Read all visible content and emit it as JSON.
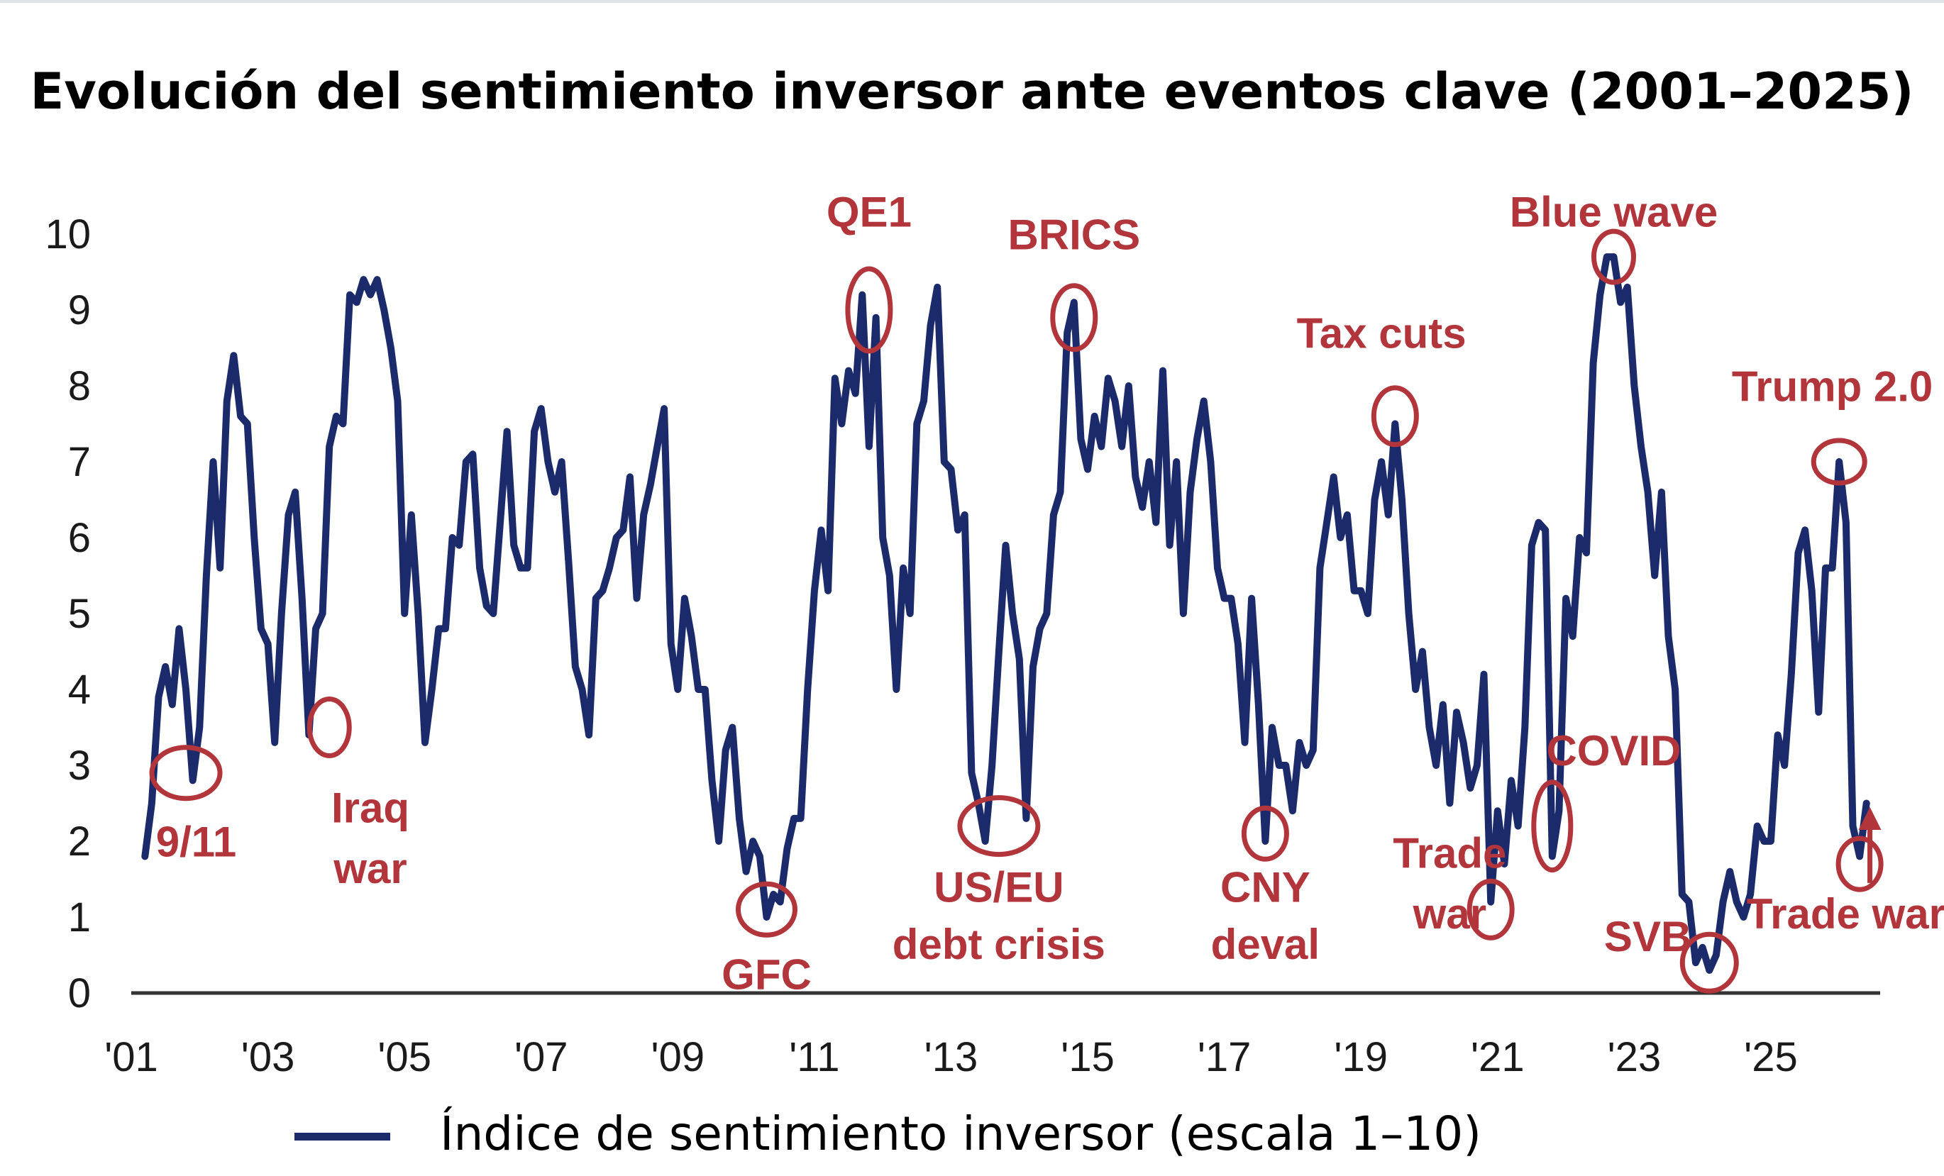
{
  "chart_data": {
    "type": "line",
    "title": "Evolución del sentimiento inversor ante eventos clave (2001–2025)",
    "xlabel": "",
    "ylabel": "",
    "xlim": [
      2001.0,
      2026.6
    ],
    "ylim": [
      0,
      10
    ],
    "y_ticks": [
      "0",
      "1",
      "2",
      "3",
      "4",
      "5",
      "6",
      "7",
      "8",
      "9",
      "10"
    ],
    "x_ticks": [
      {
        "label": "'01",
        "x": 2001
      },
      {
        "label": "'03",
        "x": 2003
      },
      {
        "label": "'05",
        "x": 2005
      },
      {
        "label": "'07",
        "x": 2007
      },
      {
        "label": "'09",
        "x": 2009
      },
      {
        "label": "'11",
        "x": 2011
      },
      {
        "label": "'13",
        "x": 2013
      },
      {
        "label": "'15",
        "x": 2015
      },
      {
        "label": "'17",
        "x": 2017
      },
      {
        "label": "'19",
        "x": 2019
      },
      {
        "label": "'21",
        "x": 2021
      },
      {
        "label": "'23",
        "x": 2023
      },
      {
        "label": "'25",
        "x": 2025
      }
    ],
    "grid": false,
    "legend_position": "bottom",
    "colors": {
      "line": "#1b2a6b",
      "annotation": "#b2353b",
      "axis": "#333333"
    },
    "series": [
      {
        "name": "Índice de sentimiento inversor (escala 1–10)",
        "points": [
          [
            2001.2,
            1.8
          ],
          [
            2001.3,
            2.5
          ],
          [
            2001.4,
            3.9
          ],
          [
            2001.5,
            4.3
          ],
          [
            2001.6,
            3.8
          ],
          [
            2001.7,
            4.8
          ],
          [
            2001.8,
            4.0
          ],
          [
            2001.9,
            2.8
          ],
          [
            2002.0,
            3.5
          ],
          [
            2002.1,
            5.5
          ],
          [
            2002.2,
            7.0
          ],
          [
            2002.3,
            5.6
          ],
          [
            2002.4,
            7.8
          ],
          [
            2002.5,
            8.4
          ],
          [
            2002.6,
            7.6
          ],
          [
            2002.7,
            7.5
          ],
          [
            2002.8,
            6.0
          ],
          [
            2002.9,
            4.8
          ],
          [
            2003.0,
            4.6
          ],
          [
            2003.1,
            3.3
          ],
          [
            2003.2,
            5.0
          ],
          [
            2003.3,
            6.3
          ],
          [
            2003.4,
            6.6
          ],
          [
            2003.5,
            5.2
          ],
          [
            2003.6,
            3.4
          ],
          [
            2003.7,
            4.8
          ],
          [
            2003.8,
            5.0
          ],
          [
            2003.9,
            7.2
          ],
          [
            2004.0,
            7.6
          ],
          [
            2004.1,
            7.5
          ],
          [
            2004.2,
            9.2
          ],
          [
            2004.3,
            9.1
          ],
          [
            2004.4,
            9.4
          ],
          [
            2004.5,
            9.2
          ],
          [
            2004.6,
            9.4
          ],
          [
            2004.7,
            9.0
          ],
          [
            2004.8,
            8.5
          ],
          [
            2004.9,
            7.8
          ],
          [
            2005.0,
            5.0
          ],
          [
            2005.1,
            6.3
          ],
          [
            2005.2,
            5.0
          ],
          [
            2005.3,
            3.3
          ],
          [
            2005.4,
            4.0
          ],
          [
            2005.5,
            4.8
          ],
          [
            2005.6,
            4.8
          ],
          [
            2005.7,
            6.0
          ],
          [
            2005.8,
            5.9
          ],
          [
            2005.9,
            7.0
          ],
          [
            2006.0,
            7.1
          ],
          [
            2006.1,
            5.6
          ],
          [
            2006.2,
            5.1
          ],
          [
            2006.3,
            5.0
          ],
          [
            2006.4,
            6.2
          ],
          [
            2006.5,
            7.4
          ],
          [
            2006.6,
            5.9
          ],
          [
            2006.7,
            5.6
          ],
          [
            2006.8,
            5.6
          ],
          [
            2006.9,
            7.4
          ],
          [
            2007.0,
            7.7
          ],
          [
            2007.1,
            7.0
          ],
          [
            2007.2,
            6.6
          ],
          [
            2007.3,
            7.0
          ],
          [
            2007.4,
            5.7
          ],
          [
            2007.5,
            4.3
          ],
          [
            2007.6,
            4.0
          ],
          [
            2007.7,
            3.4
          ],
          [
            2007.8,
            5.2
          ],
          [
            2007.9,
            5.3
          ],
          [
            2008.0,
            5.6
          ],
          [
            2008.1,
            6.0
          ],
          [
            2008.2,
            6.1
          ],
          [
            2008.3,
            6.8
          ],
          [
            2008.4,
            5.2
          ],
          [
            2008.5,
            6.3
          ],
          [
            2008.6,
            6.7
          ],
          [
            2008.7,
            7.2
          ],
          [
            2008.8,
            7.7
          ],
          [
            2008.9,
            4.6
          ],
          [
            2009.0,
            4.0
          ],
          [
            2009.1,
            5.2
          ],
          [
            2009.2,
            4.7
          ],
          [
            2009.3,
            4.0
          ],
          [
            2009.4,
            4.0
          ],
          [
            2009.5,
            2.8
          ],
          [
            2009.6,
            2.0
          ],
          [
            2009.7,
            3.2
          ],
          [
            2009.8,
            3.5
          ],
          [
            2009.9,
            2.3
          ],
          [
            2010.0,
            1.6
          ],
          [
            2010.1,
            2.0
          ],
          [
            2010.2,
            1.8
          ],
          [
            2010.3,
            1.0
          ],
          [
            2010.4,
            1.3
          ],
          [
            2010.5,
            1.2
          ],
          [
            2010.6,
            1.9
          ],
          [
            2010.7,
            2.3
          ],
          [
            2010.8,
            2.3
          ],
          [
            2010.9,
            4.0
          ],
          [
            2011.0,
            5.3
          ],
          [
            2011.1,
            6.1
          ],
          [
            2011.2,
            5.3
          ],
          [
            2011.3,
            8.1
          ],
          [
            2011.4,
            7.5
          ],
          [
            2011.5,
            8.2
          ],
          [
            2011.6,
            7.9
          ],
          [
            2011.7,
            9.2
          ],
          [
            2011.8,
            7.2
          ],
          [
            2011.9,
            8.9
          ],
          [
            2012.0,
            6.0
          ],
          [
            2012.1,
            5.5
          ],
          [
            2012.2,
            4.0
          ],
          [
            2012.3,
            5.6
          ],
          [
            2012.4,
            5.0
          ],
          [
            2012.5,
            7.5
          ],
          [
            2012.6,
            7.8
          ],
          [
            2012.7,
            8.8
          ],
          [
            2012.8,
            9.3
          ],
          [
            2012.9,
            7.0
          ],
          [
            2013.0,
            6.9
          ],
          [
            2013.1,
            6.1
          ],
          [
            2013.2,
            6.3
          ],
          [
            2013.3,
            2.9
          ],
          [
            2013.4,
            2.5
          ],
          [
            2013.5,
            2.0
          ],
          [
            2013.6,
            3.0
          ],
          [
            2013.7,
            4.5
          ],
          [
            2013.8,
            5.9
          ],
          [
            2013.9,
            5.0
          ],
          [
            2014.0,
            4.4
          ],
          [
            2014.1,
            2.3
          ],
          [
            2014.2,
            4.3
          ],
          [
            2014.3,
            4.8
          ],
          [
            2014.4,
            5.0
          ],
          [
            2014.5,
            6.3
          ],
          [
            2014.6,
            6.6
          ],
          [
            2014.7,
            8.7
          ],
          [
            2014.8,
            9.1
          ],
          [
            2014.9,
            7.3
          ],
          [
            2015.0,
            6.9
          ],
          [
            2015.1,
            7.6
          ],
          [
            2015.2,
            7.2
          ],
          [
            2015.3,
            8.1
          ],
          [
            2015.4,
            7.8
          ],
          [
            2015.5,
            7.2
          ],
          [
            2015.6,
            8.0
          ],
          [
            2015.7,
            6.8
          ],
          [
            2015.8,
            6.4
          ],
          [
            2015.9,
            7.0
          ],
          [
            2016.0,
            6.2
          ],
          [
            2016.1,
            8.2
          ],
          [
            2016.2,
            5.9
          ],
          [
            2016.3,
            7.0
          ],
          [
            2016.4,
            5.0
          ],
          [
            2016.5,
            6.6
          ],
          [
            2016.6,
            7.3
          ],
          [
            2016.7,
            7.8
          ],
          [
            2016.8,
            7.0
          ],
          [
            2016.9,
            5.6
          ],
          [
            2017.0,
            5.2
          ],
          [
            2017.1,
            5.2
          ],
          [
            2017.2,
            4.6
          ],
          [
            2017.3,
            3.3
          ],
          [
            2017.4,
            5.2
          ],
          [
            2017.5,
            3.8
          ],
          [
            2017.6,
            2.0
          ],
          [
            2017.7,
            3.5
          ],
          [
            2017.8,
            3.0
          ],
          [
            2017.9,
            3.0
          ],
          [
            2018.0,
            2.4
          ],
          [
            2018.1,
            3.3
          ],
          [
            2018.2,
            3.0
          ],
          [
            2018.3,
            3.2
          ],
          [
            2018.4,
            5.6
          ],
          [
            2018.5,
            6.2
          ],
          [
            2018.6,
            6.8
          ],
          [
            2018.7,
            6.0
          ],
          [
            2018.8,
            6.3
          ],
          [
            2018.9,
            5.3
          ],
          [
            2019.0,
            5.3
          ],
          [
            2019.1,
            5.0
          ],
          [
            2019.2,
            6.5
          ],
          [
            2019.3,
            7.0
          ],
          [
            2019.4,
            6.3
          ],
          [
            2019.5,
            7.5
          ],
          [
            2019.6,
            6.5
          ],
          [
            2019.7,
            5.0
          ],
          [
            2019.8,
            4.0
          ],
          [
            2019.9,
            4.5
          ],
          [
            2020.0,
            3.5
          ],
          [
            2020.1,
            3.0
          ],
          [
            2020.2,
            3.8
          ],
          [
            2020.3,
            2.5
          ],
          [
            2020.4,
            3.7
          ],
          [
            2020.5,
            3.3
          ],
          [
            2020.6,
            2.7
          ],
          [
            2020.7,
            3.0
          ],
          [
            2020.8,
            4.2
          ],
          [
            2020.9,
            1.2
          ],
          [
            2021.0,
            2.4
          ],
          [
            2021.1,
            1.7
          ],
          [
            2021.2,
            2.8
          ],
          [
            2021.3,
            2.2
          ],
          [
            2021.4,
            3.5
          ],
          [
            2021.5,
            5.9
          ],
          [
            2021.6,
            6.2
          ],
          [
            2021.7,
            6.1
          ],
          [
            2021.8,
            1.8
          ],
          [
            2021.9,
            2.4
          ],
          [
            2022.0,
            5.2
          ],
          [
            2022.1,
            4.7
          ],
          [
            2022.2,
            6.0
          ],
          [
            2022.3,
            5.8
          ],
          [
            2022.4,
            8.3
          ],
          [
            2022.5,
            9.2
          ],
          [
            2022.6,
            9.7
          ],
          [
            2022.7,
            9.7
          ],
          [
            2022.8,
            9.1
          ],
          [
            2022.9,
            9.3
          ],
          [
            2023.0,
            8.0
          ],
          [
            2023.1,
            7.2
          ],
          [
            2023.2,
            6.6
          ],
          [
            2023.3,
            5.5
          ],
          [
            2023.4,
            6.6
          ],
          [
            2023.5,
            4.7
          ],
          [
            2023.6,
            4.0
          ],
          [
            2023.7,
            1.3
          ],
          [
            2023.8,
            1.2
          ],
          [
            2023.9,
            0.4
          ],
          [
            2024.0,
            0.6
          ],
          [
            2024.1,
            0.3
          ],
          [
            2024.2,
            0.5
          ],
          [
            2024.3,
            1.2
          ],
          [
            2024.4,
            1.6
          ],
          [
            2024.5,
            1.2
          ],
          [
            2024.6,
            1.0
          ],
          [
            2024.7,
            1.3
          ],
          [
            2024.8,
            2.2
          ],
          [
            2024.9,
            2.0
          ],
          [
            2025.0,
            2.0
          ],
          [
            2025.1,
            3.4
          ],
          [
            2025.2,
            3.0
          ],
          [
            2025.3,
            4.2
          ],
          [
            2025.4,
            5.8
          ],
          [
            2025.5,
            6.1
          ],
          [
            2025.6,
            5.3
          ],
          [
            2025.7,
            3.7
          ],
          [
            2025.8,
            5.6
          ],
          [
            2025.9,
            5.6
          ],
          [
            2026.0,
            7.0
          ],
          [
            2026.1,
            6.2
          ],
          [
            2026.2,
            2.2
          ],
          [
            2026.3,
            1.8
          ],
          [
            2026.4,
            2.5
          ]
        ]
      }
    ],
    "annotations": [
      {
        "label": "9/11",
        "text": [
          "9/11"
        ],
        "x": 2001.8,
        "y": 2.9
      },
      {
        "label": "Iraq war",
        "text": [
          "Iraq",
          "war"
        ],
        "x": 2003.9,
        "y": 3.5
      },
      {
        "label": "GFC",
        "text": [
          "GFC"
        ],
        "x": 2010.3,
        "y": 1.1
      },
      {
        "label": "QE1",
        "text": [
          "QE1"
        ],
        "x": 2011.8,
        "y": 9.0
      },
      {
        "label": "US/EU debt crisis",
        "text": [
          "US/EU",
          "debt crisis"
        ],
        "x": 2013.7,
        "y": 2.2
      },
      {
        "label": "BRICS",
        "text": [
          "BRICS"
        ],
        "x": 2014.8,
        "y": 8.9
      },
      {
        "label": "CNY deval",
        "text": [
          "CNY",
          "deval"
        ],
        "x": 2017.6,
        "y": 2.1
      },
      {
        "label": "Tax cuts",
        "text": [
          "Tax cuts"
        ],
        "x": 2019.5,
        "y": 7.6
      },
      {
        "label": "Trade war",
        "text": [
          "Trade",
          "war"
        ],
        "x": 2020.9,
        "y": 1.1
      },
      {
        "label": "COVID",
        "text": [
          "COVID"
        ],
        "x": 2021.8,
        "y": 2.2
      },
      {
        "label": "Blue wave",
        "text": [
          "Blue wave"
        ],
        "x": 2022.7,
        "y": 9.7
      },
      {
        "label": "SVB",
        "text": [
          "SVB"
        ],
        "x": 2024.1,
        "y": 0.4
      },
      {
        "label": "Trump 2.0",
        "text": [
          "Trump 2.0"
        ],
        "x": 2026.0,
        "y": 7.0
      },
      {
        "label": "Trade war",
        "text": [
          "Trade war"
        ],
        "x": 2026.3,
        "y": 1.7
      }
    ]
  }
}
